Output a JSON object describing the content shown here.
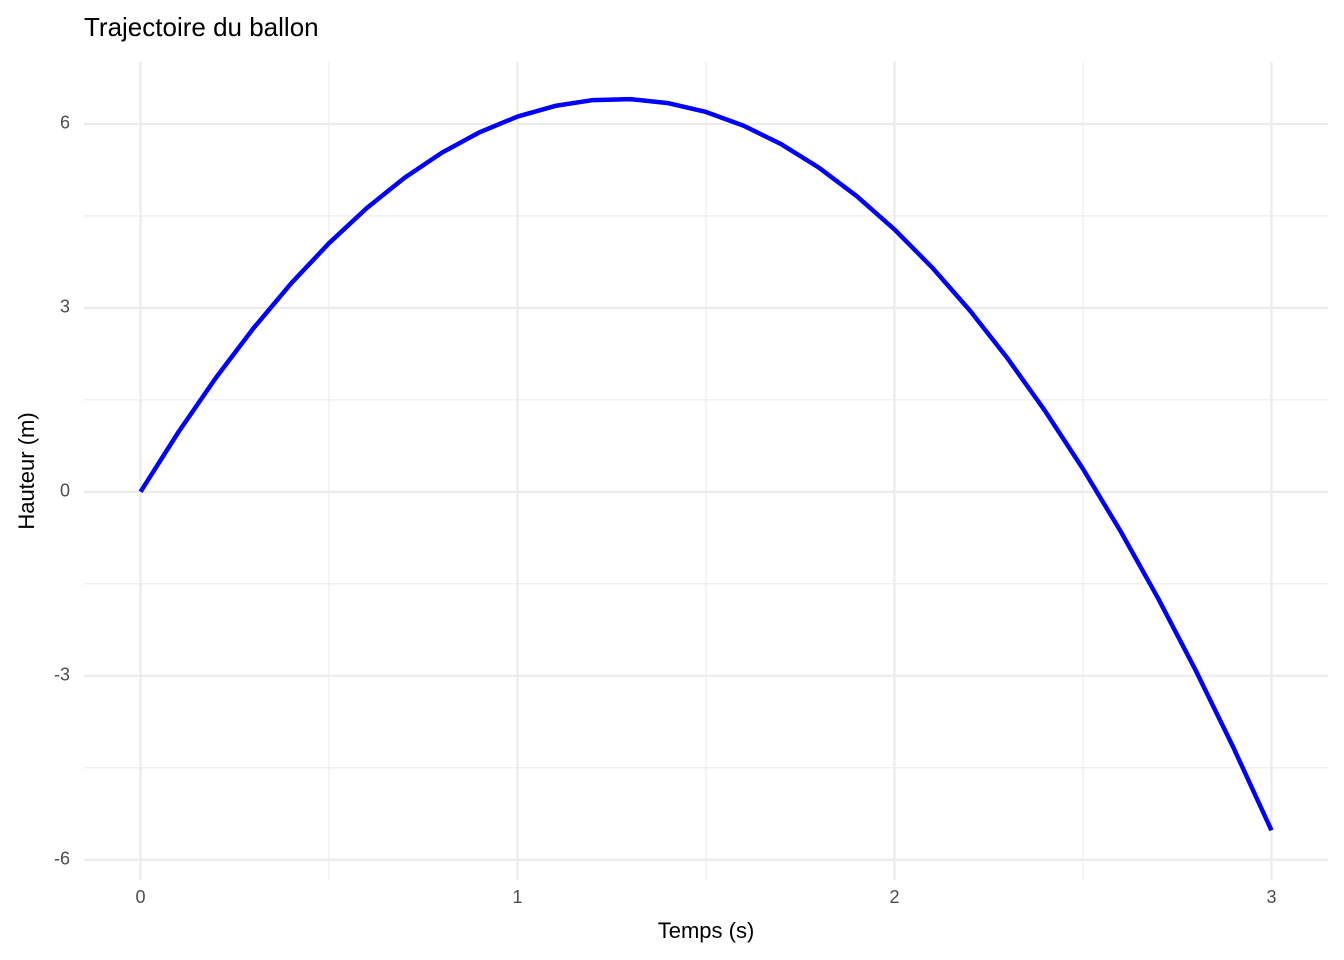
{
  "chart_data": {
    "type": "line",
    "title": "Trajectoire du ballon",
    "x_label": "Temps (s)",
    "y_label": "Hauteur (m)",
    "x": [
      0,
      0.1,
      0.2,
      0.3,
      0.4,
      0.5,
      0.6,
      0.7,
      0.8,
      0.9,
      1.0,
      1.1,
      1.2,
      1.3,
      1.4,
      1.5,
      1.6,
      1.7,
      1.8,
      1.9,
      2.0,
      2.1,
      2.2,
      2.3,
      2.4,
      2.5,
      2.6,
      2.7,
      2.8,
      2.9,
      3.0
    ],
    "series": [
      {
        "name": "Hauteur",
        "color": "#0000ff",
        "values": [
          0,
          0.97,
          1.861,
          2.672,
          3.403,
          4.055,
          4.627,
          5.12,
          5.533,
          5.866,
          6.12,
          6.294,
          6.389,
          6.404,
          6.339,
          6.195,
          5.971,
          5.668,
          5.285,
          4.822,
          4.28,
          3.658,
          2.957,
          2.176,
          1.315,
          0.375,
          -0.645,
          -1.744,
          -2.923,
          -4.182,
          -5.52
        ]
      }
    ],
    "xlim": [
      -0.15,
      3.15
    ],
    "ylim": [
      -6.33,
      7.01
    ],
    "xticks": [
      0,
      1,
      2,
      3
    ],
    "yticks": [
      -6,
      -3,
      0,
      3,
      6
    ],
    "xminor": [
      0.5,
      1.5,
      2.5
    ],
    "yminor": [
      -4.5,
      -1.5,
      1.5,
      4.5
    ],
    "grid": true,
    "legend": false
  }
}
